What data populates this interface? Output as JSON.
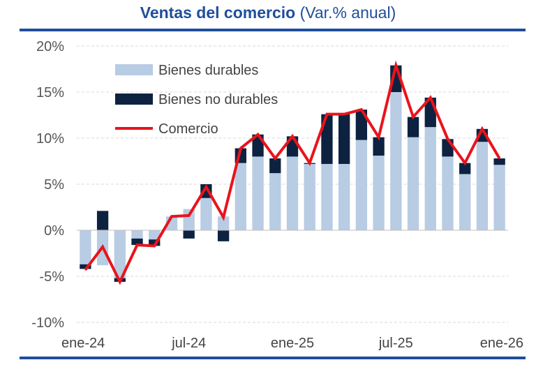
{
  "chart_data": {
    "type": "bar",
    "stacked": true,
    "title_main": "Ventas del comercio",
    "title_sub": "(Var.% anual)",
    "categories": [
      "ene-24",
      "feb-24",
      "mar-24",
      "abr-24",
      "may-24",
      "jun-24",
      "jul-24",
      "ago-24",
      "sep-24",
      "oct-24",
      "nov-24",
      "dic-24",
      "ene-25",
      "feb-25",
      "mar-25",
      "abr-25",
      "may-25",
      "jun-25",
      "jul-25",
      "ago-25",
      "sep-25",
      "oct-25",
      "nov-25",
      "dic-25",
      "ene-26"
    ],
    "x_tick_labels": [
      {
        "index": 0,
        "label": "ene-24"
      },
      {
        "index": 6,
        "label": "jul-24"
      },
      {
        "index": 12,
        "label": "ene-25"
      },
      {
        "index": 18,
        "label": "jul-25"
      },
      {
        "index": 24,
        "label": "ene-26"
      }
    ],
    "series": [
      {
        "name": "Bienes durables",
        "type": "bar",
        "color": "#b8cce4",
        "values": [
          -3.7,
          -3.8,
          -5.2,
          -0.9,
          -1.0,
          1.5,
          2.3,
          3.5,
          1.5,
          7.3,
          8.0,
          6.2,
          8.0,
          7.2,
          7.2,
          7.2,
          9.8,
          8.1,
          15.0,
          10.1,
          11.2,
          8.0,
          6.1,
          9.6,
          7.1
        ]
      },
      {
        "name": "Bienes no durables",
        "type": "bar",
        "color": "#0d2240",
        "values": [
          -0.5,
          2.1,
          -0.4,
          -0.7,
          -0.7,
          0.0,
          -0.9,
          1.5,
          -1.2,
          1.6,
          2.4,
          1.6,
          2.2,
          0.1,
          5.4,
          5.4,
          3.3,
          2.0,
          2.9,
          2.2,
          3.2,
          1.9,
          1.2,
          1.4,
          0.7
        ]
      },
      {
        "name": "Comercio",
        "type": "line",
        "color": "#e8141c",
        "values": [
          -4.3,
          -1.8,
          -5.6,
          -1.6,
          -1.7,
          1.5,
          1.6,
          4.7,
          1.4,
          8.9,
          10.4,
          7.8,
          10.2,
          7.3,
          12.6,
          12.6,
          13.1,
          10.1,
          17.9,
          12.3,
          14.4,
          9.9,
          7.3,
          11.0,
          7.8
        ]
      }
    ],
    "ylim": [
      -10,
      20
    ],
    "yticks": [
      -10,
      -5,
      0,
      5,
      10,
      15,
      20
    ],
    "ytick_labels": [
      "-10%",
      "-5%",
      "0%",
      "5%",
      "10%",
      "15%",
      "20%"
    ],
    "legend": {
      "position": "top-left",
      "entries": [
        "Bienes durables",
        "Bienes no durables",
        "Comercio"
      ]
    },
    "grid": true
  }
}
